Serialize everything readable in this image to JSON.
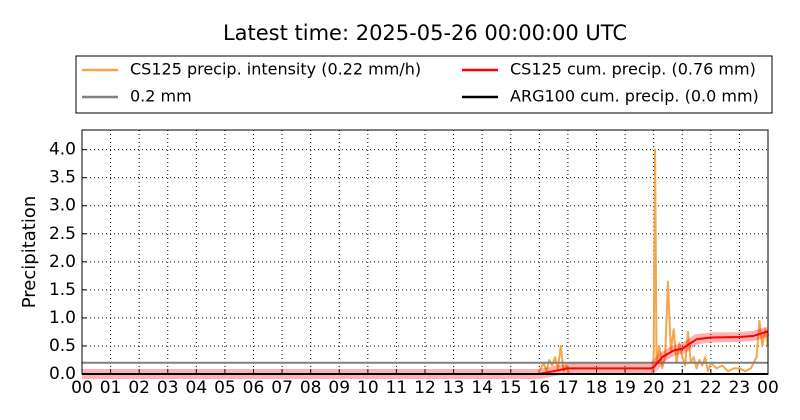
{
  "chart_data": {
    "type": "line",
    "title": "Latest time: 2025-05-26 00:00:00 UTC",
    "y_label": "Precipitation",
    "xlim": [
      0,
      24
    ],
    "ylim": [
      0,
      4.35
    ],
    "xticks": [
      {
        "value": 0,
        "label": "00"
      },
      {
        "value": 1,
        "label": "01"
      },
      {
        "value": 2,
        "label": "02"
      },
      {
        "value": 3,
        "label": "03"
      },
      {
        "value": 4,
        "label": "04"
      },
      {
        "value": 5,
        "label": "05"
      },
      {
        "value": 6,
        "label": "06"
      },
      {
        "value": 7,
        "label": "07"
      },
      {
        "value": 8,
        "label": "08"
      },
      {
        "value": 9,
        "label": "09"
      },
      {
        "value": 10,
        "label": "10"
      },
      {
        "value": 11,
        "label": "11"
      },
      {
        "value": 12,
        "label": "12"
      },
      {
        "value": 13,
        "label": "13"
      },
      {
        "value": 14,
        "label": "14"
      },
      {
        "value": 15,
        "label": "15"
      },
      {
        "value": 16,
        "label": "16"
      },
      {
        "value": 17,
        "label": "17"
      },
      {
        "value": 18,
        "label": "18"
      },
      {
        "value": 19,
        "label": "19"
      },
      {
        "value": 20,
        "label": "20"
      },
      {
        "value": 21,
        "label": "21"
      },
      {
        "value": 22,
        "label": "22"
      },
      {
        "value": 23,
        "label": "23"
      },
      {
        "value": 24,
        "label": "00"
      }
    ],
    "yticks": [
      {
        "value": 0,
        "label": "0.0"
      },
      0.5,
      {
        "value": 1,
        "label": "1.0"
      },
      1.5,
      {
        "value": 2,
        "label": "2.0"
      },
      2.5,
      {
        "value": 3,
        "label": "3.0"
      },
      3.5,
      {
        "value": 4,
        "label": "4.0"
      }
    ],
    "grid": true,
    "legend": "top",
    "series": [
      {
        "name": "CS125 precip. intensity (0.22 mm/h)",
        "color": "#f5a54a",
        "x": [
          0,
          15.95,
          16.05,
          16.15,
          16.25,
          16.35,
          16.45,
          16.55,
          16.65,
          16.75,
          16.85,
          16.95,
          17.05,
          19.95,
          20.0,
          20.05,
          20.1,
          20.2,
          20.3,
          20.4,
          20.5,
          20.6,
          20.7,
          20.8,
          20.9,
          21.0,
          21.1,
          21.2,
          21.3,
          21.4,
          21.5,
          21.6,
          21.7,
          21.8,
          21.9,
          22.0,
          22.2,
          22.4,
          22.6,
          22.8,
          23.0,
          23.2,
          23.4,
          23.6,
          23.7,
          23.8,
          23.9,
          24.0
        ],
        "values": [
          0,
          0,
          0.1,
          0.2,
          0.05,
          0.25,
          0.15,
          0.3,
          0.1,
          0.5,
          0.05,
          0.15,
          0,
          0,
          0.3,
          4.0,
          0.2,
          0.5,
          0.1,
          0.3,
          1.65,
          0.4,
          0.8,
          0.2,
          0.55,
          0.3,
          0.15,
          0.75,
          0.2,
          0.3,
          0.1,
          0.25,
          0.15,
          0.3,
          0.05,
          0.2,
          0.1,
          0.15,
          0.05,
          0.1,
          0.1,
          0.05,
          0.1,
          0.3,
          0.95,
          0.5,
          0.8,
          0.5
        ]
      },
      {
        "name": "0.2 mm",
        "color": "#808080",
        "x": [
          0,
          24
        ],
        "values": [
          0.2,
          0.2
        ]
      },
      {
        "name": "CS125 cum. precip. (0.76 mm)",
        "color": "#ff0000",
        "band": true,
        "x": [
          0,
          16,
          16.5,
          17,
          19.9,
          20.0,
          20.3,
          20.7,
          21.0,
          21.5,
          22.0,
          23.0,
          23.5,
          24
        ],
        "values": [
          0,
          0,
          0.05,
          0.1,
          0.1,
          0.12,
          0.3,
          0.42,
          0.45,
          0.62,
          0.65,
          0.66,
          0.68,
          0.76
        ]
      },
      {
        "name": "ARG100 cum. precip. (0.0 mm)",
        "color": "#000000",
        "x": [
          0,
          24
        ],
        "values": [
          0,
          0
        ]
      }
    ]
  }
}
